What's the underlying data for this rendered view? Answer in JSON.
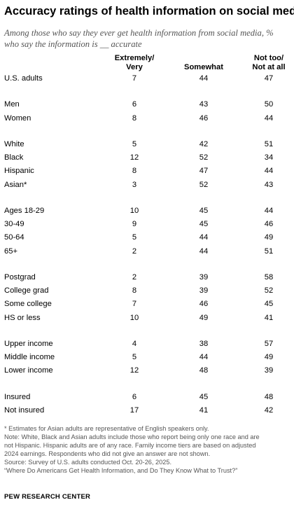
{
  "title": "Accuracy ratings of health information on social media",
  "subtitle_lines": [
    "Among those who say they ever get health information from social media, %",
    "who say the information is __ accurate"
  ],
  "chart_data": {
    "type": "table",
    "title": "Accuracy ratings of health information on social media",
    "columns": [
      "Extremely/ Very",
      "Somewhat",
      "Not too/ Not at all"
    ],
    "column_lines": [
      [
        "Extremely/",
        "Very"
      ],
      [
        "Somewhat"
      ],
      [
        "Not too/",
        "Not at all"
      ]
    ],
    "rows": [
      {
        "label": "U.S. adults",
        "values": [
          7,
          44,
          47
        ]
      },
      {
        "label": "Men",
        "values": [
          6,
          43,
          50
        ]
      },
      {
        "label": "Women",
        "values": [
          8,
          46,
          44
        ]
      },
      {
        "label": "White",
        "values": [
          5,
          42,
          51
        ]
      },
      {
        "label": "Black",
        "values": [
          12,
          52,
          34
        ]
      },
      {
        "label": "Hispanic",
        "values": [
          8,
          47,
          44
        ]
      },
      {
        "label": "Asian*",
        "values": [
          3,
          52,
          43
        ]
      },
      {
        "label": "Ages 18-29",
        "values": [
          10,
          45,
          44
        ]
      },
      {
        "label": "30-49",
        "values": [
          9,
          45,
          46
        ]
      },
      {
        "label": "50-64",
        "values": [
          5,
          44,
          49
        ]
      },
      {
        "label": "65+",
        "values": [
          2,
          44,
          51
        ]
      },
      {
        "label": "Postgrad",
        "values": [
          2,
          39,
          58
        ]
      },
      {
        "label": "College grad",
        "values": [
          8,
          39,
          52
        ]
      },
      {
        "label": "Some college",
        "values": [
          7,
          46,
          45
        ]
      },
      {
        "label": "HS or less",
        "values": [
          10,
          49,
          41
        ]
      },
      {
        "label": "Upper income",
        "values": [
          4,
          38,
          57
        ]
      },
      {
        "label": "Middle income",
        "values": [
          5,
          44,
          49
        ]
      },
      {
        "label": "Lower income",
        "values": [
          12,
          48,
          39
        ]
      },
      {
        "label": "Insured",
        "values": [
          6,
          45,
          48
        ]
      },
      {
        "label": "Not insured",
        "values": [
          17,
          41,
          42
        ]
      }
    ],
    "groups": [
      [
        0
      ],
      [
        1,
        2
      ],
      [
        3,
        4,
        5,
        6
      ],
      [
        7,
        8,
        9,
        10
      ],
      [
        11,
        12,
        13,
        14
      ],
      [
        15,
        16,
        17
      ],
      [
        18,
        19
      ]
    ]
  },
  "notes": [
    "* Estimates for Asian adults are representative of English speakers only.",
    "Note: White, Black and Asian adults include those who report being only one race and are",
    "not Hispanic. Hispanic adults are of any race. Family income tiers are based on adjusted",
    "2024 earnings. Respondents who did not give an answer are not shown.",
    "Source: Survey of U.S. adults conducted Oct. 20-26, 2025.",
    "“Where Do Americans Get Health Information, and Do They Know What to Trust?”"
  ],
  "source_org": "PEW RESEARCH CENTER"
}
